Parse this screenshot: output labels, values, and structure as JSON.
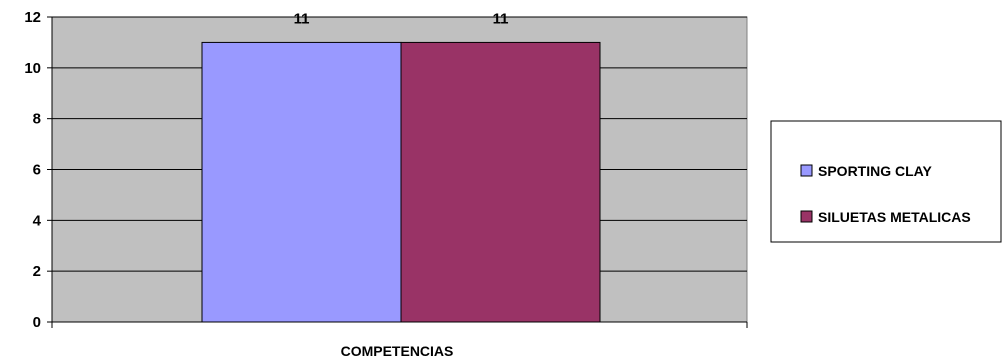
{
  "chart_data": {
    "type": "bar",
    "categories": [
      "COMPETENCIAS"
    ],
    "series": [
      {
        "name": "SPORTING CLAY",
        "values": [
          11
        ],
        "color": "#9999FF"
      },
      {
        "name": "SILUETAS METALICAS",
        "values": [
          11
        ],
        "color": "#993366"
      }
    ],
    "yticks": [
      "0",
      "2",
      "4",
      "6",
      "8",
      "10",
      "12"
    ],
    "ylim": [
      0,
      12
    ],
    "xlabel": "COMPETENCIAS",
    "ylabel": "",
    "title": "",
    "grid": true,
    "plot_background": "#C0C0C0",
    "legend_position": "right",
    "data_labels": [
      "11",
      "11"
    ]
  }
}
